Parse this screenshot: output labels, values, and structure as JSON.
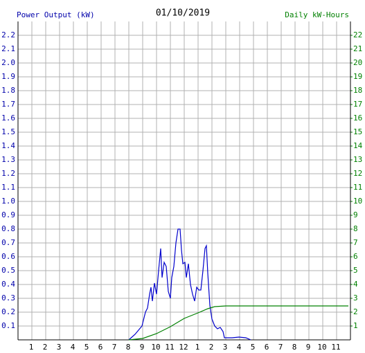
{
  "chart_data": {
    "type": "line",
    "title": "01/10/2019",
    "y_label": "Power Output (kW)",
    "y2_label": "Daily kW-Hours",
    "xlim": [
      0,
      24
    ],
    "xticks": [
      1,
      2,
      3,
      4,
      5,
      6,
      7,
      8,
      9,
      10,
      11,
      12,
      {
        "value": 13,
        "label": "1"
      },
      {
        "value": 14,
        "label": "2"
      },
      {
        "value": 15,
        "label": "3"
      },
      {
        "value": 16,
        "label": "4"
      },
      {
        "value": 17,
        "label": "5"
      },
      {
        "value": 18,
        "label": "6"
      },
      {
        "value": 19,
        "label": "7"
      },
      {
        "value": 20,
        "label": "8"
      },
      {
        "value": 21,
        "label": "9"
      },
      {
        "value": 22,
        "label": "10"
      },
      {
        "value": 23,
        "label": "11"
      }
    ],
    "ylim": [
      0,
      2.3
    ],
    "yticks": [
      0.1,
      0.2,
      0.3,
      0.4,
      0.5,
      0.6,
      0.7,
      0.8,
      0.9,
      {
        "value": 1,
        "label": "1.0"
      },
      1.1,
      1.2,
      1.3,
      1.4,
      1.5,
      1.6,
      1.7,
      1.8,
      1.9,
      {
        "value": 2,
        "label": "2.0"
      },
      2.1,
      2.2
    ],
    "y2lim": [
      0,
      23
    ],
    "y2ticks": [
      1,
      2,
      3,
      4,
      5,
      6,
      7,
      8,
      9,
      10,
      11,
      12,
      13,
      14,
      15,
      16,
      17,
      18,
      19,
      20,
      21,
      22
    ],
    "grid": true,
    "y_color": "#0000aa",
    "y2_color": "#008000",
    "series": [
      {
        "color": "#0000cc",
        "axis": "y",
        "x": [
          8.0,
          8.45,
          8.95,
          9.2,
          9.35,
          9.5,
          9.6,
          9.7,
          9.85,
          10.0,
          10.15,
          10.3,
          10.4,
          10.55,
          10.7,
          10.85,
          11.0,
          11.1,
          11.25,
          11.4,
          11.55,
          11.7,
          11.8,
          11.9,
          12.05,
          12.15,
          12.3,
          12.45,
          12.6,
          12.75,
          12.9,
          13.05,
          13.2,
          13.35,
          13.5,
          13.6,
          13.7,
          13.85,
          14.0,
          14.2,
          14.4,
          14.6,
          14.8,
          14.9,
          15.45,
          15.95,
          16.45,
          16.8
        ],
        "values": [
          0.0,
          0.04,
          0.1,
          0.2,
          0.23,
          0.33,
          0.38,
          0.28,
          0.41,
          0.33,
          0.5,
          0.66,
          0.45,
          0.56,
          0.53,
          0.35,
          0.3,
          0.45,
          0.53,
          0.7,
          0.8,
          0.8,
          0.65,
          0.55,
          0.56,
          0.45,
          0.55,
          0.4,
          0.33,
          0.28,
          0.38,
          0.36,
          0.36,
          0.5,
          0.66,
          0.68,
          0.48,
          0.25,
          0.15,
          0.1,
          0.08,
          0.09,
          0.06,
          0.015,
          0.015,
          0.02,
          0.015,
          0.0
        ]
      },
      {
        "color": "#008000",
        "axis": "y2",
        "x": [
          8,
          9,
          10,
          11,
          12,
          13,
          13.7,
          14.2,
          15,
          23.85
        ],
        "values": [
          0,
          0.1,
          0.45,
          0.95,
          1.55,
          1.95,
          2.25,
          2.4,
          2.45,
          2.45
        ]
      }
    ]
  }
}
